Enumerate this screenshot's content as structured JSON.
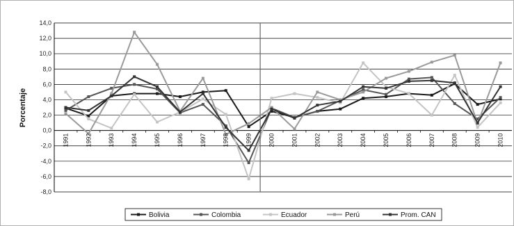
{
  "chart_data": {
    "type": "line",
    "title": "",
    "xlabel": "",
    "ylabel": "Porcentaje",
    "ylim": [
      -8,
      14
    ],
    "yticks": [
      "14,0",
      "12,0",
      "10,0",
      "8,0",
      "6,0",
      "4,0",
      "2,0",
      "0,0",
      "-2,0",
      "-4,0",
      "-6,0",
      "-8,0"
    ],
    "categories": [
      "1991",
      "1992",
      "1993",
      "1994",
      "1995",
      "1996",
      "1997",
      "1998",
      "1999",
      "2000",
      "2001",
      "2002",
      "2003",
      "2004",
      "2005",
      "2006",
      "2007",
      "2008",
      "2009",
      "2010"
    ],
    "grid": true,
    "legend": "bottom",
    "vertical_marker_at": "2000",
    "series": [
      {
        "name": "Bolivia",
        "color": "#1a1a1a",
        "values": [
          2.9,
          1.9,
          4.5,
          4.8,
          4.8,
          4.4,
          5.0,
          5.2,
          0.5,
          2.5,
          1.7,
          2.5,
          2.8,
          4.2,
          4.4,
          4.8,
          4.6,
          6.1,
          3.4,
          4.1
        ]
      },
      {
        "name": "Colombia",
        "color": "#555555",
        "values": [
          2.6,
          4.4,
          5.5,
          6.0,
          5.4,
          2.3,
          3.4,
          0.6,
          -4.2,
          2.9,
          1.7,
          2.5,
          3.9,
          5.3,
          4.7,
          6.7,
          6.9,
          3.5,
          1.5,
          4.3
        ]
      },
      {
        "name": "Ecuador",
        "color": "#c4c4c4",
        "values": [
          5.0,
          1.5,
          0.3,
          4.7,
          1.1,
          2.4,
          4.1,
          2.1,
          -6.3,
          4.2,
          4.8,
          4.3,
          3.6,
          8.8,
          5.7,
          4.8,
          2.0,
          7.2,
          0.4,
          3.6
        ]
      },
      {
        "name": "Perú",
        "color": "#9a9a9a",
        "values": [
          2.2,
          -0.4,
          4.8,
          12.8,
          8.6,
          2.5,
          6.8,
          -0.5,
          0.9,
          3.0,
          0.2,
          5.0,
          4.0,
          5.0,
          6.8,
          7.7,
          8.9,
          9.8,
          0.9,
          8.8
        ]
      },
      {
        "name": "Prom. CAN",
        "color": "#333333",
        "values": [
          3.0,
          2.6,
          4.5,
          7.0,
          5.7,
          2.4,
          4.8,
          0.4,
          -2.6,
          2.8,
          1.6,
          3.3,
          3.8,
          5.7,
          5.5,
          6.4,
          6.5,
          6.2,
          1.0,
          5.7
        ]
      }
    ]
  }
}
